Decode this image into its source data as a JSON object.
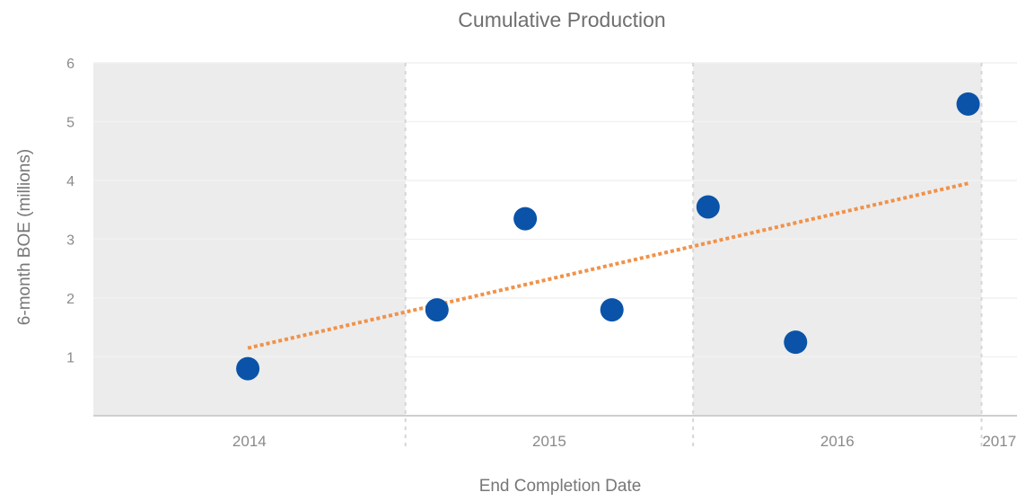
{
  "chart_data": {
    "type": "scatter",
    "title": "Cumulative Production",
    "xlabel": "End Completion Date",
    "ylabel": "6-month BOE (millions)",
    "ylim": [
      0,
      6
    ],
    "yticks": [
      "1",
      "2",
      "3",
      "4",
      "5",
      "6"
    ],
    "x_axis_type": "time",
    "xlim": [
      "2013-12-01",
      "2017-02-15"
    ],
    "year_bands": [
      {
        "label": "2014",
        "start": "2013-12-01",
        "end": "2015-01-01",
        "shaded": true
      },
      {
        "label": "2015",
        "start": "2015-01-01",
        "end": "2016-01-01",
        "shaded": false
      },
      {
        "label": "2016",
        "start": "2016-01-01",
        "end": "2017-01-01",
        "shaded": true
      },
      {
        "label": "2017",
        "start": "2017-01-01",
        "end": "2017-02-15",
        "shaded": false
      }
    ],
    "series": [
      {
        "points": [
          {
            "x": "2014-06-15",
            "y": 0.8
          },
          {
            "x": "2015-02-10",
            "y": 1.8
          },
          {
            "x": "2015-06-02",
            "y": 3.35
          },
          {
            "x": "2015-09-20",
            "y": 1.8
          },
          {
            "x": "2016-01-20",
            "y": 3.55
          },
          {
            "x": "2016-05-10",
            "y": 1.25
          },
          {
            "x": "2016-12-15",
            "y": 5.3
          }
        ],
        "color": "#0a53a8"
      }
    ],
    "trendline": {
      "type": "linear",
      "style": "dotted",
      "color": "#f0924a",
      "start": {
        "x": "2014-06-15",
        "y": 1.15
      },
      "end": {
        "x": "2016-12-15",
        "y": 3.95
      }
    },
    "grid": true,
    "legend": "none"
  }
}
